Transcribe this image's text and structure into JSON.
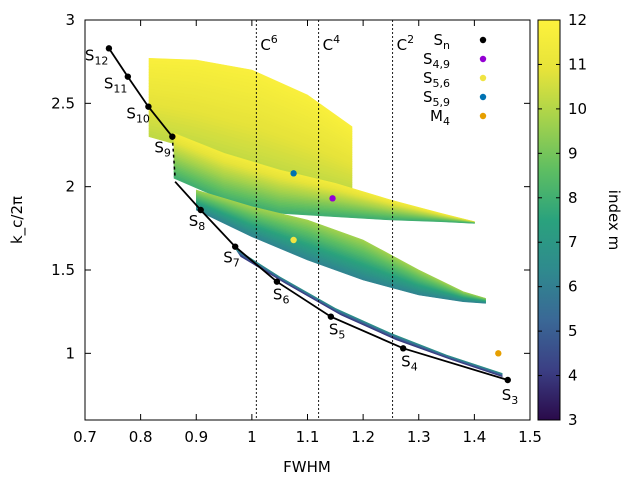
{
  "chart_data": {
    "type": "scatter",
    "xlabel": "FWHM",
    "ylabel": "k_c/2π",
    "xlim": [
      0.7,
      1.5
    ],
    "ylim": [
      0.6,
      3.0
    ],
    "xticks": [
      "0.7",
      "0.8",
      "0.9",
      "1",
      "1.1",
      "1.2",
      "1.3",
      "1.4",
      "1.5"
    ],
    "yticks": [
      "1",
      "1.5",
      "2",
      "2.5",
      "3"
    ],
    "colorbar": {
      "label": "index m",
      "min": 3,
      "max": 12,
      "ticks": [
        "3",
        "4",
        "5",
        "6",
        "7",
        "8",
        "9",
        "10",
        "11",
        "12"
      ],
      "stops": [
        "#2a0a4a",
        "#3b3f84",
        "#3a6896",
        "#2f8a8e",
        "#2aa27d",
        "#5ebe62",
        "#a4d24c",
        "#e6e33a",
        "#fdf23c"
      ]
    },
    "vlines": [
      {
        "x": 1.008,
        "base": "C",
        "sup": "6"
      },
      {
        "x": 1.12,
        "base": "C",
        "sup": "4"
      },
      {
        "x": 1.253,
        "base": "C",
        "sup": "2"
      }
    ],
    "legend": [
      {
        "base": "S",
        "sub": "n",
        "color": "#000000"
      },
      {
        "base": "S",
        "sub": "4,9",
        "color": "#9400d3"
      },
      {
        "base": "S",
        "sub": "5,6",
        "color": "#f0e442"
      },
      {
        "base": "S",
        "sub": "5,9",
        "color": "#0072b2"
      },
      {
        "base": "M",
        "sub": "4",
        "color": "#e69f00"
      }
    ],
    "special_points": [
      {
        "name": "S4,9",
        "x": 1.145,
        "y": 1.93,
        "color": "#9400d3"
      },
      {
        "name": "S5,6",
        "x": 1.075,
        "y": 1.68,
        "color": "#f0e442"
      },
      {
        "name": "S5,9",
        "x": 1.075,
        "y": 2.08,
        "color": "#0072b2"
      },
      {
        "name": "M4",
        "x": 1.443,
        "y": 1.0,
        "color": "#e69f00"
      }
    ],
    "sn_points": [
      {
        "n": "12",
        "x": 0.743,
        "y": 2.83
      },
      {
        "n": "11",
        "x": 0.777,
        "y": 2.66
      },
      {
        "n": "10",
        "x": 0.814,
        "y": 2.48
      },
      {
        "n": "9",
        "x": 0.857,
        "y": 2.3
      },
      {
        "n": "8",
        "x": 0.908,
        "y": 1.86
      },
      {
        "n": "7",
        "x": 0.97,
        "y": 1.64
      },
      {
        "n": "6",
        "x": 1.045,
        "y": 1.43
      },
      {
        "n": "5",
        "x": 1.142,
        "y": 1.22
      },
      {
        "n": "4",
        "x": 1.272,
        "y": 1.03
      },
      {
        "n": "3",
        "x": 1.46,
        "y": 0.84
      }
    ]
  }
}
